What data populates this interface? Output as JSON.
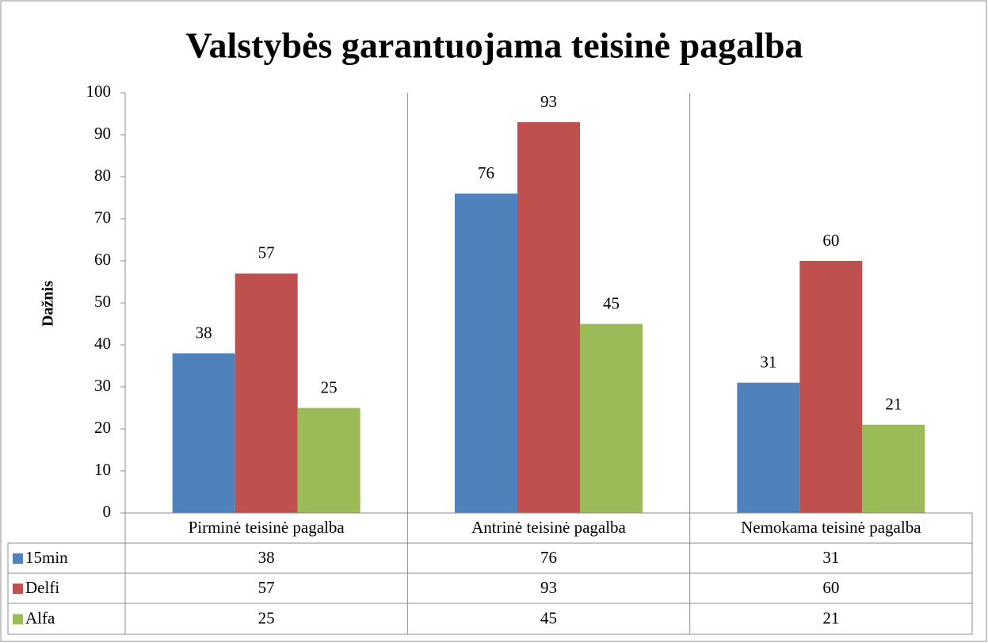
{
  "chart_data": {
    "type": "bar",
    "title": "Valstybės garantuojama teisinė pagalba",
    "y_label": "Dažnis",
    "categories": [
      "Pirminė teisinė pagalba",
      "Antrinė teisinė pagalba",
      "Nemokama teisinė pagalba"
    ],
    "series": [
      {
        "name": "15min",
        "color": "#4f81bd",
        "values": [
          38,
          76,
          31
        ]
      },
      {
        "name": "Delfi",
        "color": "#c0504d",
        "values": [
          57,
          93,
          60
        ]
      },
      {
        "name": "Alfa",
        "color": "#9bbb59",
        "values": [
          25,
          45,
          21
        ]
      }
    ],
    "ylim": [
      0,
      100
    ],
    "yticks": [
      0,
      10,
      20,
      30,
      40,
      50,
      60,
      70,
      80,
      90,
      100
    ],
    "grid": false,
    "data_table": true
  }
}
